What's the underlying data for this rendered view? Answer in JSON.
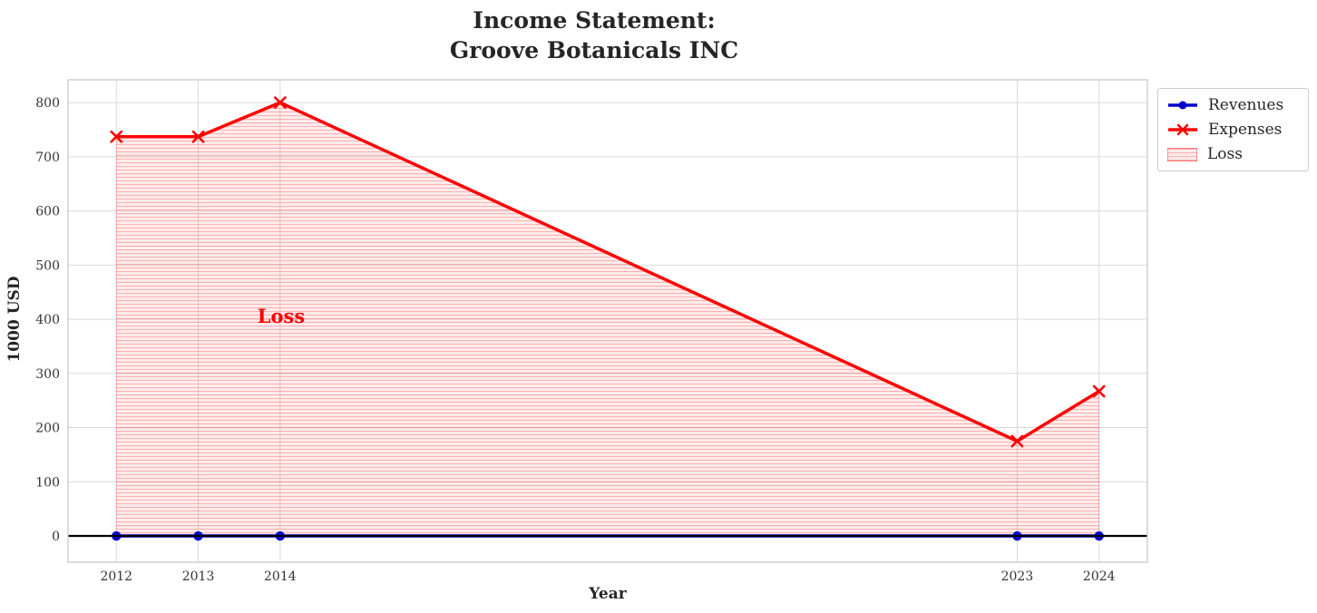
{
  "title": {
    "line1": "Income Statement:",
    "line2": "Groove Botanicals INC"
  },
  "x_axis_label": "Year",
  "y_axis_label": "1000 USD",
  "annotation_label": "Loss",
  "legend": {
    "items": [
      {
        "label": "Revenues"
      },
      {
        "label": "Expenses"
      },
      {
        "label": "Loss"
      }
    ]
  },
  "chart_data": {
    "type": "line",
    "title": "Income Statement: Groove Botanicals INC",
    "xlabel": "Year",
    "ylabel": "1000 USD",
    "x": [
      2012,
      2013,
      2014,
      2023,
      2024
    ],
    "series": [
      {
        "name": "Revenues",
        "color": "#0000cd",
        "marker": "circle",
        "line_width": 3.5,
        "values": [
          0,
          0,
          0,
          0,
          0
        ]
      },
      {
        "name": "Expenses",
        "color": "#ff0000",
        "marker": "x",
        "line_width": 3.5,
        "values": [
          737,
          737,
          800,
          175,
          267
        ]
      }
    ],
    "loss_fill": {
      "label": "Loss",
      "between": [
        "Revenues",
        "Expenses"
      ],
      "facecolor": "rgba(255,0,0,0.08)",
      "hatch": "horizontal-lines",
      "hatch_color": "rgba(255,0,0,0.25)"
    },
    "annotation": {
      "text": "Loss",
      "x": 2014,
      "y": 400,
      "color": "#ff0000"
    },
    "x_ticks": [
      2012,
      2013,
      2014,
      2023,
      2024
    ],
    "y_ticks": [
      0,
      100,
      200,
      300,
      400,
      500,
      600,
      700,
      800
    ],
    "xlim": [
      2011.41,
      2024.59
    ],
    "ylim": [
      -48.5,
      842
    ],
    "grid": true,
    "grid_color": "#d9d9d9",
    "spine_color": "#cccccc",
    "zero_line_color": "#000000",
    "legend_position": "outside-upper-right"
  }
}
